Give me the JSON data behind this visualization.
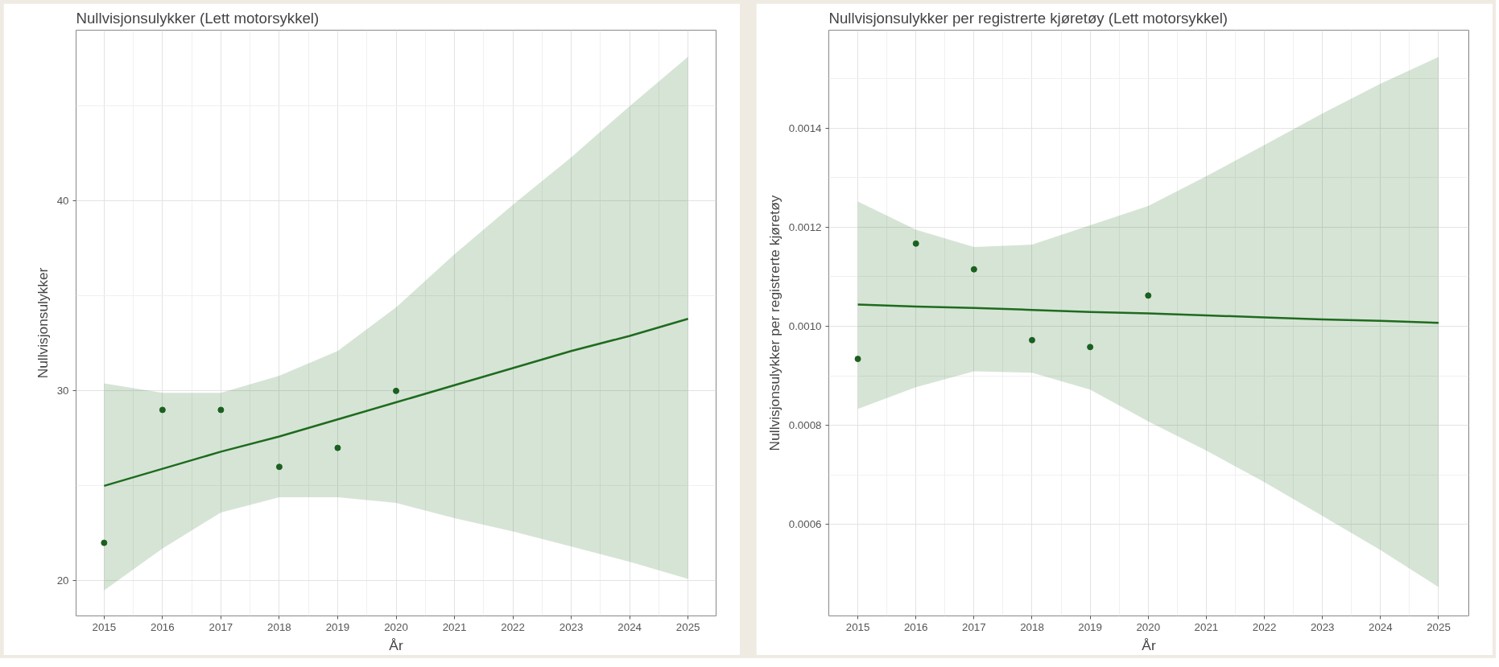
{
  "chart_data": [
    {
      "type": "scatter",
      "title": "Nullvisjonsulykker (Lett motorsykkel)",
      "xlabel": "År",
      "ylabel": "Nullvisjonsulykker",
      "xlim": [
        2014.52,
        2025.48
      ],
      "xticks": [
        2015,
        2016,
        2017,
        2018,
        2019,
        2020,
        2021,
        2022,
        2023,
        2024,
        2025
      ],
      "ylim": [
        18.15,
        49
      ],
      "yticks": [
        20,
        30,
        40
      ],
      "grid": true,
      "series": [
        {
          "marker": "circle",
          "color": "#1b5e20",
          "x": [
            2015,
            2016,
            2017,
            2018,
            2019,
            2020
          ],
          "values": [
            22,
            29,
            29,
            26,
            27,
            30
          ]
        },
        {
          "type": "line",
          "color": "#1e6b1e",
          "x": [
            2015,
            2016,
            2017,
            2018,
            2019,
            2020,
            2021,
            2022,
            2023,
            2024,
            2025
          ],
          "values": [
            25.0,
            25.9,
            26.8,
            27.6,
            28.5,
            29.4,
            30.3,
            31.2,
            32.1,
            32.9,
            33.8
          ],
          "lower": [
            19.5,
            21.7,
            23.6,
            24.4,
            24.4,
            24.1,
            23.3,
            22.6,
            21.8,
            21.0,
            20.1
          ],
          "upper": [
            30.4,
            29.9,
            29.9,
            30.8,
            32.1,
            34.4,
            37.2,
            39.8,
            42.3,
            45.0,
            47.6
          ]
        }
      ]
    },
    {
      "type": "scatter",
      "title": "Nullvisjonsulykker per registrerte kjøretøy (Lett motorsykkel)",
      "xlabel": "År",
      "ylabel": "Nullvisjonsulykker per registrerte kjøretøy",
      "xlim": [
        2014.5,
        2025.52
      ],
      "xticks": [
        2015,
        2016,
        2017,
        2018,
        2019,
        2020,
        2021,
        2022,
        2023,
        2024,
        2025
      ],
      "ylim": [
        0.000415,
        0.001598
      ],
      "yticks": [
        0.0006,
        0.0008,
        {
          "value": 0.001,
          "label": "0.0010"
        },
        0.0012,
        0.0014
      ],
      "grid": true,
      "series": [
        {
          "marker": "circle",
          "color": "#1b5e20",
          "x": [
            2015,
            2016,
            2017,
            2018,
            2019,
            2020
          ],
          "values": [
            0.000934,
            0.001167,
            0.001115,
            0.000972,
            0.000958,
            0.001062
          ]
        },
        {
          "type": "line",
          "color": "#1e6b1e",
          "x": [
            2015,
            2016,
            2017,
            2018,
            2019,
            2020,
            2021,
            2022,
            2023,
            2024,
            2025
          ],
          "values": [
            0.001044,
            0.00104,
            0.001037,
            0.001033,
            0.001029,
            0.001026,
            0.001022,
            0.001018,
            0.001014,
            0.001011,
            0.001007
          ],
          "lower": [
            0.000833,
            0.000877,
            0.000909,
            0.000906,
            0.000872,
            0.000808,
            0.000749,
            0.000685,
            0.000617,
            0.000548,
            0.000473
          ],
          "upper": [
            0.001252,
            0.001195,
            0.00116,
            0.001165,
            0.001204,
            0.001243,
            0.001303,
            0.001366,
            0.00143,
            0.00149,
            0.001544
          ]
        }
      ]
    }
  ]
}
